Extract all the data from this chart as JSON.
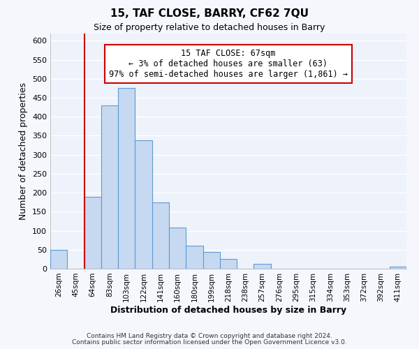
{
  "title1": "15, TAF CLOSE, BARRY, CF62 7QU",
  "title2": "Size of property relative to detached houses in Barry",
  "xlabel": "Distribution of detached houses by size in Barry",
  "ylabel": "Number of detached properties",
  "bar_labels": [
    "26sqm",
    "45sqm",
    "64sqm",
    "83sqm",
    "103sqm",
    "122sqm",
    "141sqm",
    "160sqm",
    "180sqm",
    "199sqm",
    "218sqm",
    "238sqm",
    "257sqm",
    "276sqm",
    "295sqm",
    "315sqm",
    "334sqm",
    "353sqm",
    "372sqm",
    "392sqm",
    "411sqm"
  ],
  "bar_values": [
    50,
    0,
    190,
    430,
    475,
    338,
    175,
    108,
    60,
    45,
    25,
    0,
    12,
    0,
    0,
    0,
    0,
    0,
    0,
    0,
    5
  ],
  "bar_color": "#c6d9f0",
  "bar_edge_color": "#5b9bd5",
  "box_text_line1": "15 TAF CLOSE: 67sqm",
  "box_text_line2": "← 3% of detached houses are smaller (63)",
  "box_text_line3": "97% of semi-detached houses are larger (1,861) →",
  "box_color": "white",
  "box_edge_color": "#cc0000",
  "vline_color": "#cc0000",
  "ylim": [
    0,
    620
  ],
  "yticks": [
    0,
    50,
    100,
    150,
    200,
    250,
    300,
    350,
    400,
    450,
    500,
    550,
    600
  ],
  "footer1": "Contains HM Land Registry data © Crown copyright and database right 2024.",
  "footer2": "Contains public sector information licensed under the Open Government Licence v3.0.",
  "plot_bg_color": "#eef2fa",
  "fig_bg_color": "#f5f7fc",
  "grid_color": "#ffffff"
}
